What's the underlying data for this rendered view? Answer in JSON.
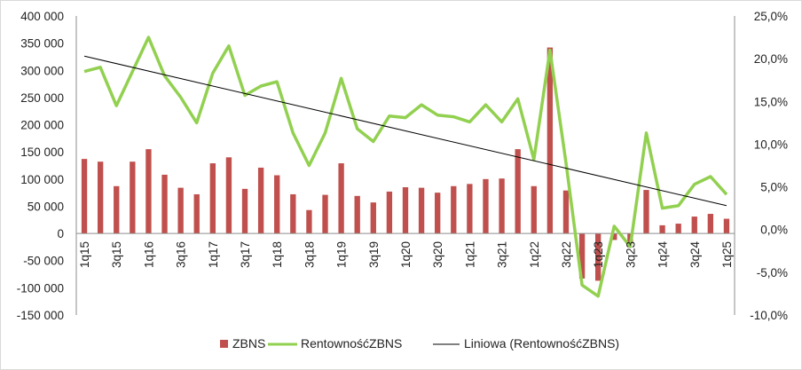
{
  "chart_data": {
    "type": "bar",
    "categories": [
      "1q15",
      "2q15",
      "3q15",
      "4q15",
      "1q16",
      "2q16",
      "3q16",
      "4q16",
      "1q17",
      "2q17",
      "3q17",
      "4q17",
      "1q18",
      "2q18",
      "3q18",
      "4q18",
      "1q19",
      "2q19",
      "3q19",
      "4q19",
      "1q20",
      "2q20",
      "3q20",
      "4q20",
      "1q21",
      "2q21",
      "3q21",
      "4q21",
      "1q22",
      "2q22",
      "3q22",
      "4q22",
      "1q23",
      "2q23",
      "3q23",
      "4q23",
      "1q24",
      "2q24",
      "3q24",
      "4q24",
      "1q25"
    ],
    "x_tick_labels": [
      "1q15",
      "3q15",
      "1q16",
      "3q16",
      "1q17",
      "3q17",
      "1q18",
      "3q18",
      "1q19",
      "3q19",
      "1q20",
      "3q20",
      "1q21",
      "3q21",
      "1q22",
      "3q22",
      "1q23",
      "3q23",
      "1q24",
      "3q24",
      "1q25"
    ],
    "series": [
      {
        "name": "ZBNS",
        "axis": "left",
        "kind": "bar",
        "color": "#c0504d",
        "values": [
          137000,
          132000,
          87000,
          132000,
          155000,
          108000,
          84000,
          72000,
          129000,
          140000,
          82000,
          121000,
          107000,
          72000,
          43000,
          71000,
          129000,
          69000,
          57000,
          77000,
          85000,
          84000,
          75000,
          87000,
          91000,
          100000,
          101000,
          155000,
          87000,
          342000,
          79000,
          -83000,
          -87000,
          -12000,
          -18000,
          80000,
          15000,
          18000,
          31000,
          36000,
          27000
        ]
      },
      {
        "name": "RentownośćZBNS",
        "axis": "right",
        "kind": "line",
        "color": "#92d050",
        "values": [
          18.5,
          19.0,
          14.5,
          18.5,
          22.5,
          18.0,
          15.5,
          12.5,
          18.3,
          21.5,
          15.7,
          16.8,
          17.3,
          11.3,
          7.5,
          11.3,
          17.7,
          11.8,
          10.3,
          13.3,
          13.1,
          14.6,
          13.4,
          13.2,
          12.6,
          14.6,
          12.6,
          15.3,
          8.2,
          21.0,
          7.8,
          -6.5,
          -7.8,
          0.4,
          -2.0,
          11.3,
          2.5,
          2.8,
          5.3,
          6.2,
          4.1
        ]
      },
      {
        "name": "Liniowa (RentownośćZBNS)",
        "axis": "right",
        "kind": "trendline",
        "color": "#000000",
        "start": 20.3,
        "end": 2.8
      }
    ],
    "y_left": {
      "min": -150000,
      "max": 400000,
      "step": 50000,
      "tick_labels": [
        "400 000",
        "350 000",
        "300 000",
        "250 000",
        "200 000",
        "150 000",
        "100 000",
        "50 000",
        "0",
        "-50 000",
        "-100 000",
        "-150 000"
      ]
    },
    "y_right": {
      "min": -10,
      "max": 25,
      "step": 5,
      "tick_labels": [
        "25,0%",
        "20,0%",
        "15,0%",
        "10,0%",
        "5,0%",
        "0,0%",
        "-5,0%",
        "-10,0%"
      ]
    },
    "legend_position": "bottom",
    "grid": false
  }
}
